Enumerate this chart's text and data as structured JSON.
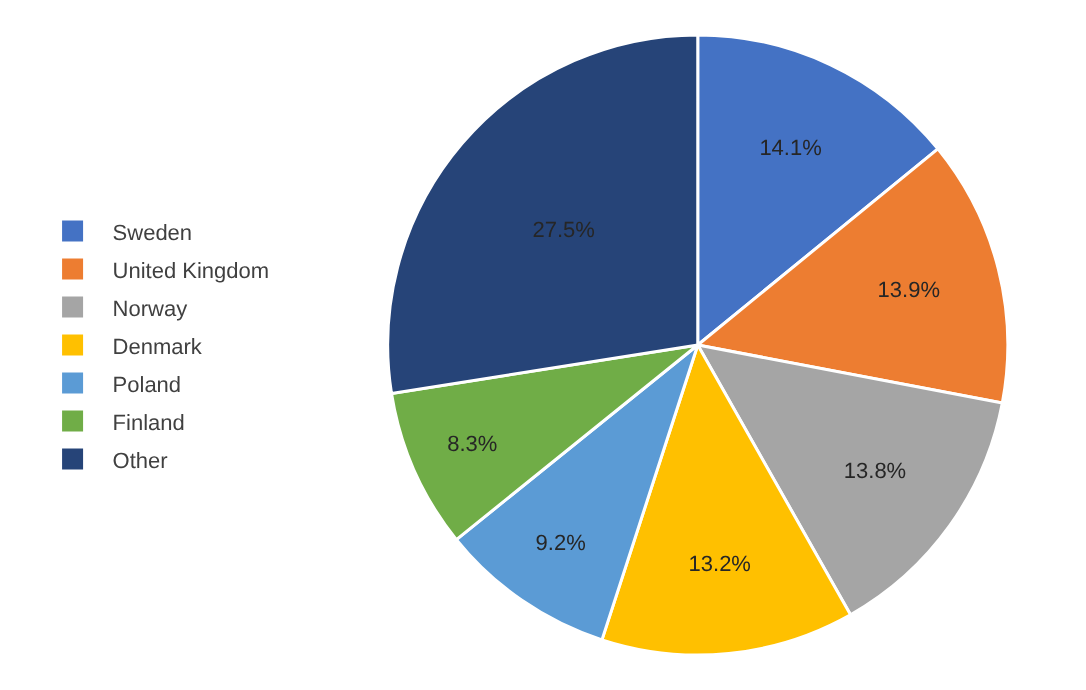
{
  "chart_data": {
    "type": "pie",
    "categories": [
      "Sweden",
      "United Kingdom",
      "Norway",
      "Denmark",
      "Poland",
      "Finland",
      "Other"
    ],
    "values": [
      14.1,
      13.9,
      13.8,
      13.2,
      9.2,
      8.3,
      27.5
    ],
    "colors": [
      "#4472c4",
      "#ed7d31",
      "#a5a5a5",
      "#ffc000",
      "#5b9bd5",
      "#70ad47",
      "#264478"
    ],
    "value_labels": [
      "14.1%",
      "13.9%",
      "13.8%",
      "13.2%",
      "9.2%",
      "8.3%",
      "27.5%"
    ],
    "legend": "left"
  }
}
